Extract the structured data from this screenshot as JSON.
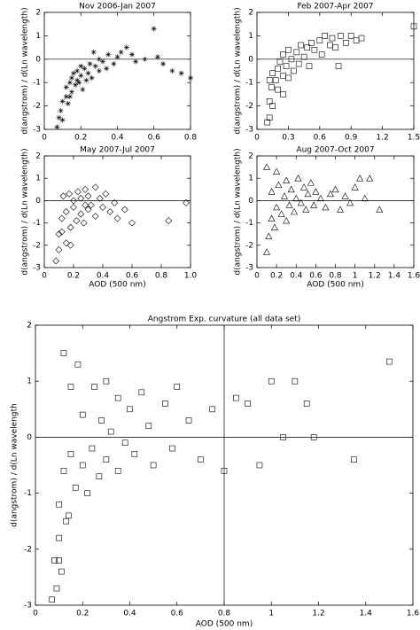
{
  "chart_data": [
    {
      "type": "scatter",
      "title": "Nov 2006-Jan 2007",
      "y_label": "d(angstrom) / d(Ln wavelength)",
      "marker": "asterisk",
      "color": "#000000",
      "x": [
        0.07,
        0.08,
        0.09,
        0.1,
        0.1,
        0.12,
        0.12,
        0.13,
        0.14,
        0.15,
        0.15,
        0.16,
        0.17,
        0.18,
        0.18,
        0.2,
        0.2,
        0.21,
        0.22,
        0.24,
        0.25,
        0.26,
        0.28,
        0.3,
        0.3,
        0.32,
        0.34,
        0.35,
        0.38,
        0.4,
        0.42,
        0.45,
        0.48,
        0.5,
        0.55,
        0.6,
        0.62,
        0.65,
        0.7,
        0.75,
        0.8,
        0.14,
        0.19,
        0.23,
        0.27
      ],
      "y": [
        -2.9,
        -2.5,
        -2.2,
        -1.8,
        -2.6,
        -1.6,
        -1.2,
        -1.9,
        -1.0,
        -1.4,
        -0.8,
        -0.6,
        -1.1,
        -0.9,
        -0.5,
        -0.7,
        -0.3,
        -1.3,
        -0.4,
        -0.6,
        -0.2,
        -0.8,
        -0.3,
        -0.5,
        0.0,
        -0.1,
        -0.4,
        0.2,
        -0.2,
        0.1,
        0.3,
        0.5,
        0.2,
        -0.1,
        0.0,
        1.3,
        0.1,
        -0.2,
        -0.5,
        -0.6,
        -0.8,
        -1.6,
        -1.0,
        -0.9,
        0.3
      ],
      "xlim": [
        0,
        0.8
      ],
      "xticks": [
        0,
        0.2,
        0.4,
        0.6,
        0.8
      ],
      "ylim": [
        -3,
        2
      ],
      "yticks": [
        -3,
        -2,
        -1,
        0,
        1,
        2
      ],
      "hlines": [
        0
      ]
    },
    {
      "type": "scatter",
      "title": "Feb 2007-Apr 2007",
      "y_label": "d(angstrom) / d(Ln wavelength)",
      "marker": "square",
      "color": "#000000",
      "x": [
        0.1,
        0.12,
        0.12,
        0.14,
        0.15,
        0.15,
        0.18,
        0.2,
        0.2,
        0.22,
        0.25,
        0.25,
        0.28,
        0.3,
        0.3,
        0.33,
        0.35,
        0.38,
        0.4,
        0.42,
        0.45,
        0.48,
        0.5,
        0.52,
        0.55,
        0.6,
        0.62,
        0.65,
        0.7,
        0.72,
        0.75,
        0.8,
        0.85,
        0.9,
        0.95,
        1.0,
        0.78,
        1.5,
        0.12,
        0.25
      ],
      "y": [
        -2.7,
        -2.5,
        -1.8,
        -1.2,
        -0.6,
        -2.0,
        -0.9,
        -0.4,
        -1.3,
        -0.1,
        -0.7,
        0.2,
        -0.3,
        -0.8,
        0.4,
        0.0,
        -0.5,
        0.3,
        -0.2,
        0.6,
        0.1,
        0.5,
        -0.3,
        0.7,
        0.4,
        0.8,
        0.2,
        1.0,
        0.6,
        0.9,
        0.5,
        1.0,
        0.7,
        1.0,
        0.8,
        0.9,
        -0.3,
        1.4,
        -0.9,
        -1.5
      ],
      "xlim": [
        0,
        1.5
      ],
      "xticks": [
        0,
        0.3,
        0.6,
        0.9,
        1.2,
        1.5
      ],
      "ylim": [
        -3,
        2
      ],
      "yticks": [
        -3,
        -2,
        -1,
        0,
        1,
        2
      ],
      "hlines": [
        0
      ]
    },
    {
      "type": "scatter",
      "title": "May 2007-Jul 2007",
      "x_label": "AOD (500 nm)",
      "y_label": "d(angstrom) / d(Ln wavelength)",
      "marker": "diamond",
      "color": "#000000",
      "x": [
        0.08,
        0.1,
        0.1,
        0.12,
        0.13,
        0.15,
        0.15,
        0.17,
        0.18,
        0.2,
        0.2,
        0.22,
        0.23,
        0.25,
        0.25,
        0.27,
        0.28,
        0.3,
        0.3,
        0.32,
        0.35,
        0.35,
        0.38,
        0.4,
        0.42,
        0.45,
        0.48,
        0.5,
        0.55,
        0.6,
        0.85,
        0.97,
        0.12,
        0.18,
        0.28
      ],
      "y": [
        -2.7,
        -2.2,
        -1.5,
        -0.8,
        0.2,
        -1.9,
        -0.5,
        0.3,
        -1.2,
        -0.3,
        0.0,
        -0.9,
        0.4,
        -0.6,
        0.1,
        -1.0,
        0.5,
        -0.4,
        0.2,
        -0.2,
        -0.7,
        0.6,
        0.1,
        -0.3,
        0.3,
        -0.5,
        -0.1,
        -0.8,
        -0.4,
        -1.0,
        -0.9,
        -0.1,
        -1.4,
        -2.0,
        -0.2
      ],
      "xlim": [
        0,
        1
      ],
      "xticks": [
        0,
        0.2,
        0.4,
        0.6,
        0.8,
        {
          "value": 1,
          "label": "1.0"
        }
      ],
      "ylim": [
        -3,
        2
      ],
      "yticks": [
        -3,
        -2,
        -1,
        0,
        1,
        2
      ],
      "hlines": [
        0
      ]
    },
    {
      "type": "scatter",
      "title": "Aug 2007-Oct 2007",
      "x_label": "AOD (500 nm)",
      "y_label": "d(angstrom) / d(Ln wavelength)",
      "marker": "triangle",
      "color": "#000000",
      "x": [
        0.1,
        0.12,
        0.15,
        0.15,
        0.18,
        0.2,
        0.22,
        0.25,
        0.28,
        0.3,
        0.3,
        0.33,
        0.35,
        0.38,
        0.4,
        0.42,
        0.45,
        0.48,
        0.5,
        0.52,
        0.55,
        0.58,
        0.6,
        0.65,
        0.7,
        0.75,
        0.8,
        0.85,
        0.9,
        0.95,
        1.0,
        1.05,
        1.1,
        1.15,
        1.25,
        0.1,
        0.2
      ],
      "y": [
        -2.3,
        -1.6,
        -0.8,
        0.4,
        -1.2,
        -0.3,
        0.7,
        -0.6,
        0.2,
        -0.9,
        0.9,
        -0.2,
        0.5,
        -0.5,
        0.1,
        1.0,
        -0.1,
        0.6,
        -0.4,
        0.3,
        0.8,
        -0.2,
        0.4,
        0.1,
        -0.3,
        0.3,
        0.5,
        -0.4,
        0.2,
        -0.1,
        0.6,
        1.0,
        0.1,
        1.0,
        -0.4,
        1.5,
        1.3
      ],
      "xlim": [
        0,
        1.6
      ],
      "xticks": [
        0,
        0.2,
        0.4,
        0.6,
        0.8,
        1,
        1.2,
        1.4,
        1.6
      ],
      "ylim": [
        -3,
        2
      ],
      "yticks": [
        -3,
        -2,
        -1,
        0,
        1,
        2
      ],
      "hlines": [
        0
      ]
    },
    {
      "type": "scatter",
      "title": "Angstrom Exp. curvature (all data set)",
      "x_label": "AOD (500 nm)",
      "y_label": "d(angstrom) / d(Ln wavelength",
      "marker": "square",
      "color": "#000000",
      "x": [
        0.07,
        0.08,
        0.09,
        0.1,
        0.1,
        0.11,
        0.12,
        0.12,
        0.13,
        0.15,
        0.15,
        0.17,
        0.18,
        0.2,
        0.2,
        0.22,
        0.24,
        0.25,
        0.27,
        0.28,
        0.3,
        0.3,
        0.32,
        0.35,
        0.35,
        0.38,
        0.4,
        0.42,
        0.45,
        0.48,
        0.5,
        0.55,
        0.58,
        0.6,
        0.65,
        0.7,
        0.75,
        0.8,
        0.85,
        0.9,
        0.95,
        1.0,
        1.05,
        1.1,
        1.15,
        1.18,
        1.35,
        1.5,
        0.1,
        0.14
      ],
      "y": [
        -2.9,
        -2.2,
        -2.7,
        -1.8,
        -1.2,
        -2.4,
        -0.6,
        1.5,
        -1.5,
        -0.3,
        0.9,
        -0.9,
        1.3,
        -0.5,
        0.4,
        -1.0,
        -0.2,
        0.9,
        -0.7,
        0.3,
        -0.4,
        1.0,
        0.1,
        -0.6,
        0.7,
        -0.1,
        0.5,
        -0.3,
        0.8,
        0.2,
        -0.5,
        0.6,
        -0.2,
        0.9,
        0.3,
        -0.4,
        0.5,
        -0.6,
        0.7,
        0.6,
        -0.5,
        1.0,
        0.0,
        1.0,
        0.6,
        0.0,
        -0.4,
        1.35,
        -2.2,
        -1.4
      ],
      "xlim": [
        0,
        1.6
      ],
      "xticks": [
        0,
        0.2,
        0.4,
        0.6,
        0.8,
        1,
        1.2,
        1.4,
        1.6
      ],
      "ylim": [
        -3,
        2
      ],
      "yticks": [
        -3,
        -2,
        -1,
        0,
        1,
        2
      ],
      "hlines": [
        0
      ],
      "vlines": [
        0.8
      ]
    }
  ]
}
